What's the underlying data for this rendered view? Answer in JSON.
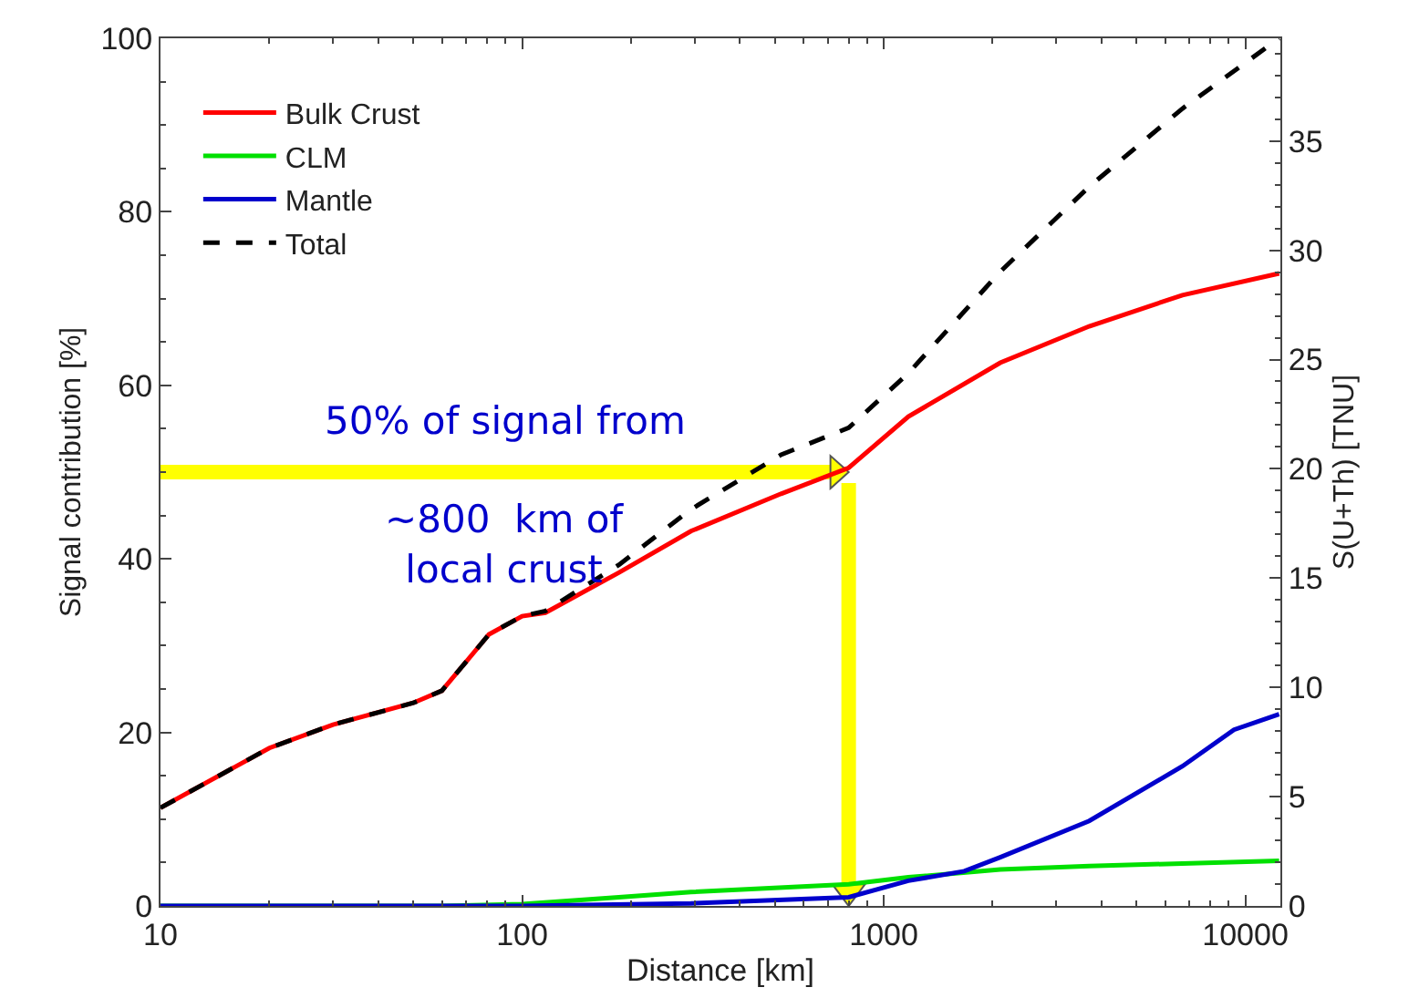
{
  "chart_data": {
    "type": "line",
    "xlabel": "Distance [km]",
    "ylabel": "Signal contribution [%]",
    "y2label": "S(U+Th) [TNU]",
    "log": "x",
    "xlim": [
      10,
      12500
    ],
    "xticks": [
      10,
      100,
      1000,
      10000
    ],
    "ylim": [
      0,
      100
    ],
    "yticks": [
      0,
      20,
      40,
      60,
      80,
      100
    ],
    "y2lim": [
      0,
      39.7
    ],
    "y2ticks": [
      0,
      5,
      10,
      15,
      20,
      25,
      30,
      35
    ],
    "grid": false,
    "legend": "top left",
    "marker": "none",
    "series": [
      {
        "name": "Bulk Crust",
        "color": "#ff0000",
        "line_style": "solid",
        "x": [
          10,
          20,
          30,
          50,
          60,
          81,
          100,
          116,
          185,
          293,
          520,
          800,
          1170,
          2100,
          3700,
          6700,
          12400
        ],
        "values": [
          11.3,
          18.2,
          20.9,
          23.4,
          24.8,
          31.3,
          33.4,
          33.8,
          38.4,
          43.2,
          47.5,
          50.5,
          56.4,
          62.6,
          66.8,
          70.4,
          72.9
        ]
      },
      {
        "name": "CLM",
        "color": "#00e000",
        "line_style": "solid",
        "x": [
          10,
          60,
          100,
          185,
          293,
          800,
          1170,
          2100,
          3700,
          12400
        ],
        "values": [
          0,
          0,
          0.2,
          1.0,
          1.6,
          2.5,
          3.3,
          4.2,
          4.6,
          5.2
        ]
      },
      {
        "name": "Mantle",
        "color": "#0000cc",
        "line_style": "solid",
        "x": [
          10,
          100,
          293,
          800,
          1170,
          1670,
          2100,
          3700,
          6700,
          9300,
          12400
        ],
        "values": [
          0,
          0,
          0.3,
          1.0,
          2.9,
          4.0,
          5.6,
          9.8,
          16.1,
          20.3,
          22.1
        ]
      },
      {
        "name": "Total",
        "color": "#000000",
        "line_style": "dashed",
        "x": [
          10,
          20,
          30,
          50,
          60,
          81,
          100,
          116,
          185,
          293,
          520,
          800,
          1170,
          2100,
          3700,
          6700,
          12400
        ],
        "values": [
          11.3,
          18.2,
          20.9,
          23.4,
          24.8,
          31.3,
          33.4,
          34.0,
          39.3,
          45.7,
          52.0,
          55.1,
          61.4,
          73.1,
          82.9,
          91.9,
          100
        ]
      }
    ],
    "ref_lines": [
      {
        "axis": "y",
        "value": 50,
        "color": "#ffff00"
      },
      {
        "axis": "x",
        "value": 800,
        "color": "#ffff00"
      }
    ],
    "annotations": [
      "50% of signal from",
      "~800  km of\nlocal crust"
    ]
  }
}
